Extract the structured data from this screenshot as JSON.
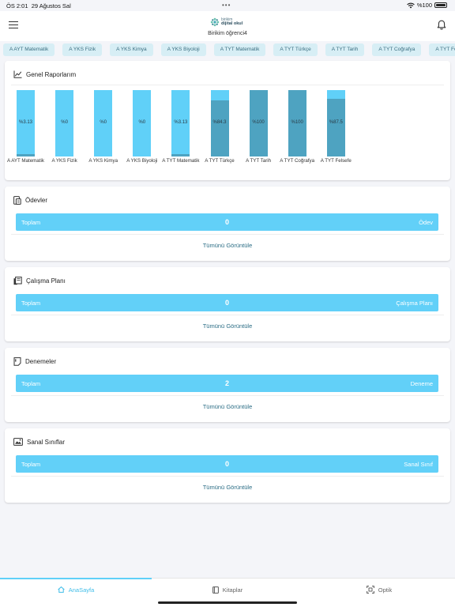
{
  "status": {
    "time": "ÖS 2:01",
    "date": "29 Ağustos Sal",
    "battery": "%100"
  },
  "header": {
    "brand_line1": "birikim",
    "brand_line2": "dijital okul",
    "user": "Birikim öğrenci4"
  },
  "tabs": [
    "A AYT Matematik",
    "A YKS Fizik",
    "A YKS Kimya",
    "A YKS Biyoloji",
    "A TYT Matematik",
    "A TYT Türkçe",
    "A TYT Tarih",
    "A TYT Coğrafya",
    "A TYT Felsefe"
  ],
  "reports": {
    "title": "Genel Raporlarım",
    "chart_data": {
      "type": "bar",
      "categories": [
        "A AYT Matematik",
        "A YKS Fizik",
        "A YKS Kimya",
        "A YKS Biyoloji",
        "A TYT Matematik",
        "A TYT Türkçe",
        "A TYT Tarih",
        "A TYT Coğrafya",
        "A TYT Felsefe"
      ],
      "values": [
        3.13,
        0,
        0,
        0,
        3.13,
        84.3,
        100,
        100,
        87.5
      ],
      "labels": [
        "%3.13",
        "%0",
        "%0",
        "%0",
        "%3.13",
        "%84.3",
        "%100",
        "%100",
        "%87.5"
      ],
      "ylim": [
        0,
        100
      ],
      "colors": {
        "track": "#60d0f8",
        "fill": "#4ea3c1"
      }
    }
  },
  "sections": [
    {
      "title": "Ödevler",
      "icon": "homework-icon",
      "total_label": "Toplam",
      "count": "0",
      "unit": "Ödev",
      "view_all": "Tümünü Görüntüle"
    },
    {
      "title": "Çalışma Planı",
      "icon": "books-icon",
      "total_label": "Toplam",
      "count": "0",
      "unit": "Çalışma Planı",
      "view_all": "Tümünü Görüntüle"
    },
    {
      "title": "Denemeler",
      "icon": "exam-icon",
      "total_label": "Toplam",
      "count": "2",
      "unit": "Deneme",
      "view_all": "Tümünü Görüntüle"
    },
    {
      "title": "Sanal Sınıflar",
      "icon": "virtual-class-icon",
      "total_label": "Toplam",
      "count": "0",
      "unit": "Sanal Sınıf",
      "view_all": "Tümünü Görüntüle"
    }
  ],
  "nav": {
    "home": "AnaSayfa",
    "books": "Kitaplar",
    "optik": "Optik"
  },
  "colors": {
    "accent": "#62d0f8",
    "tab_bg": "#d7eef5",
    "link": "#2b6d85"
  }
}
